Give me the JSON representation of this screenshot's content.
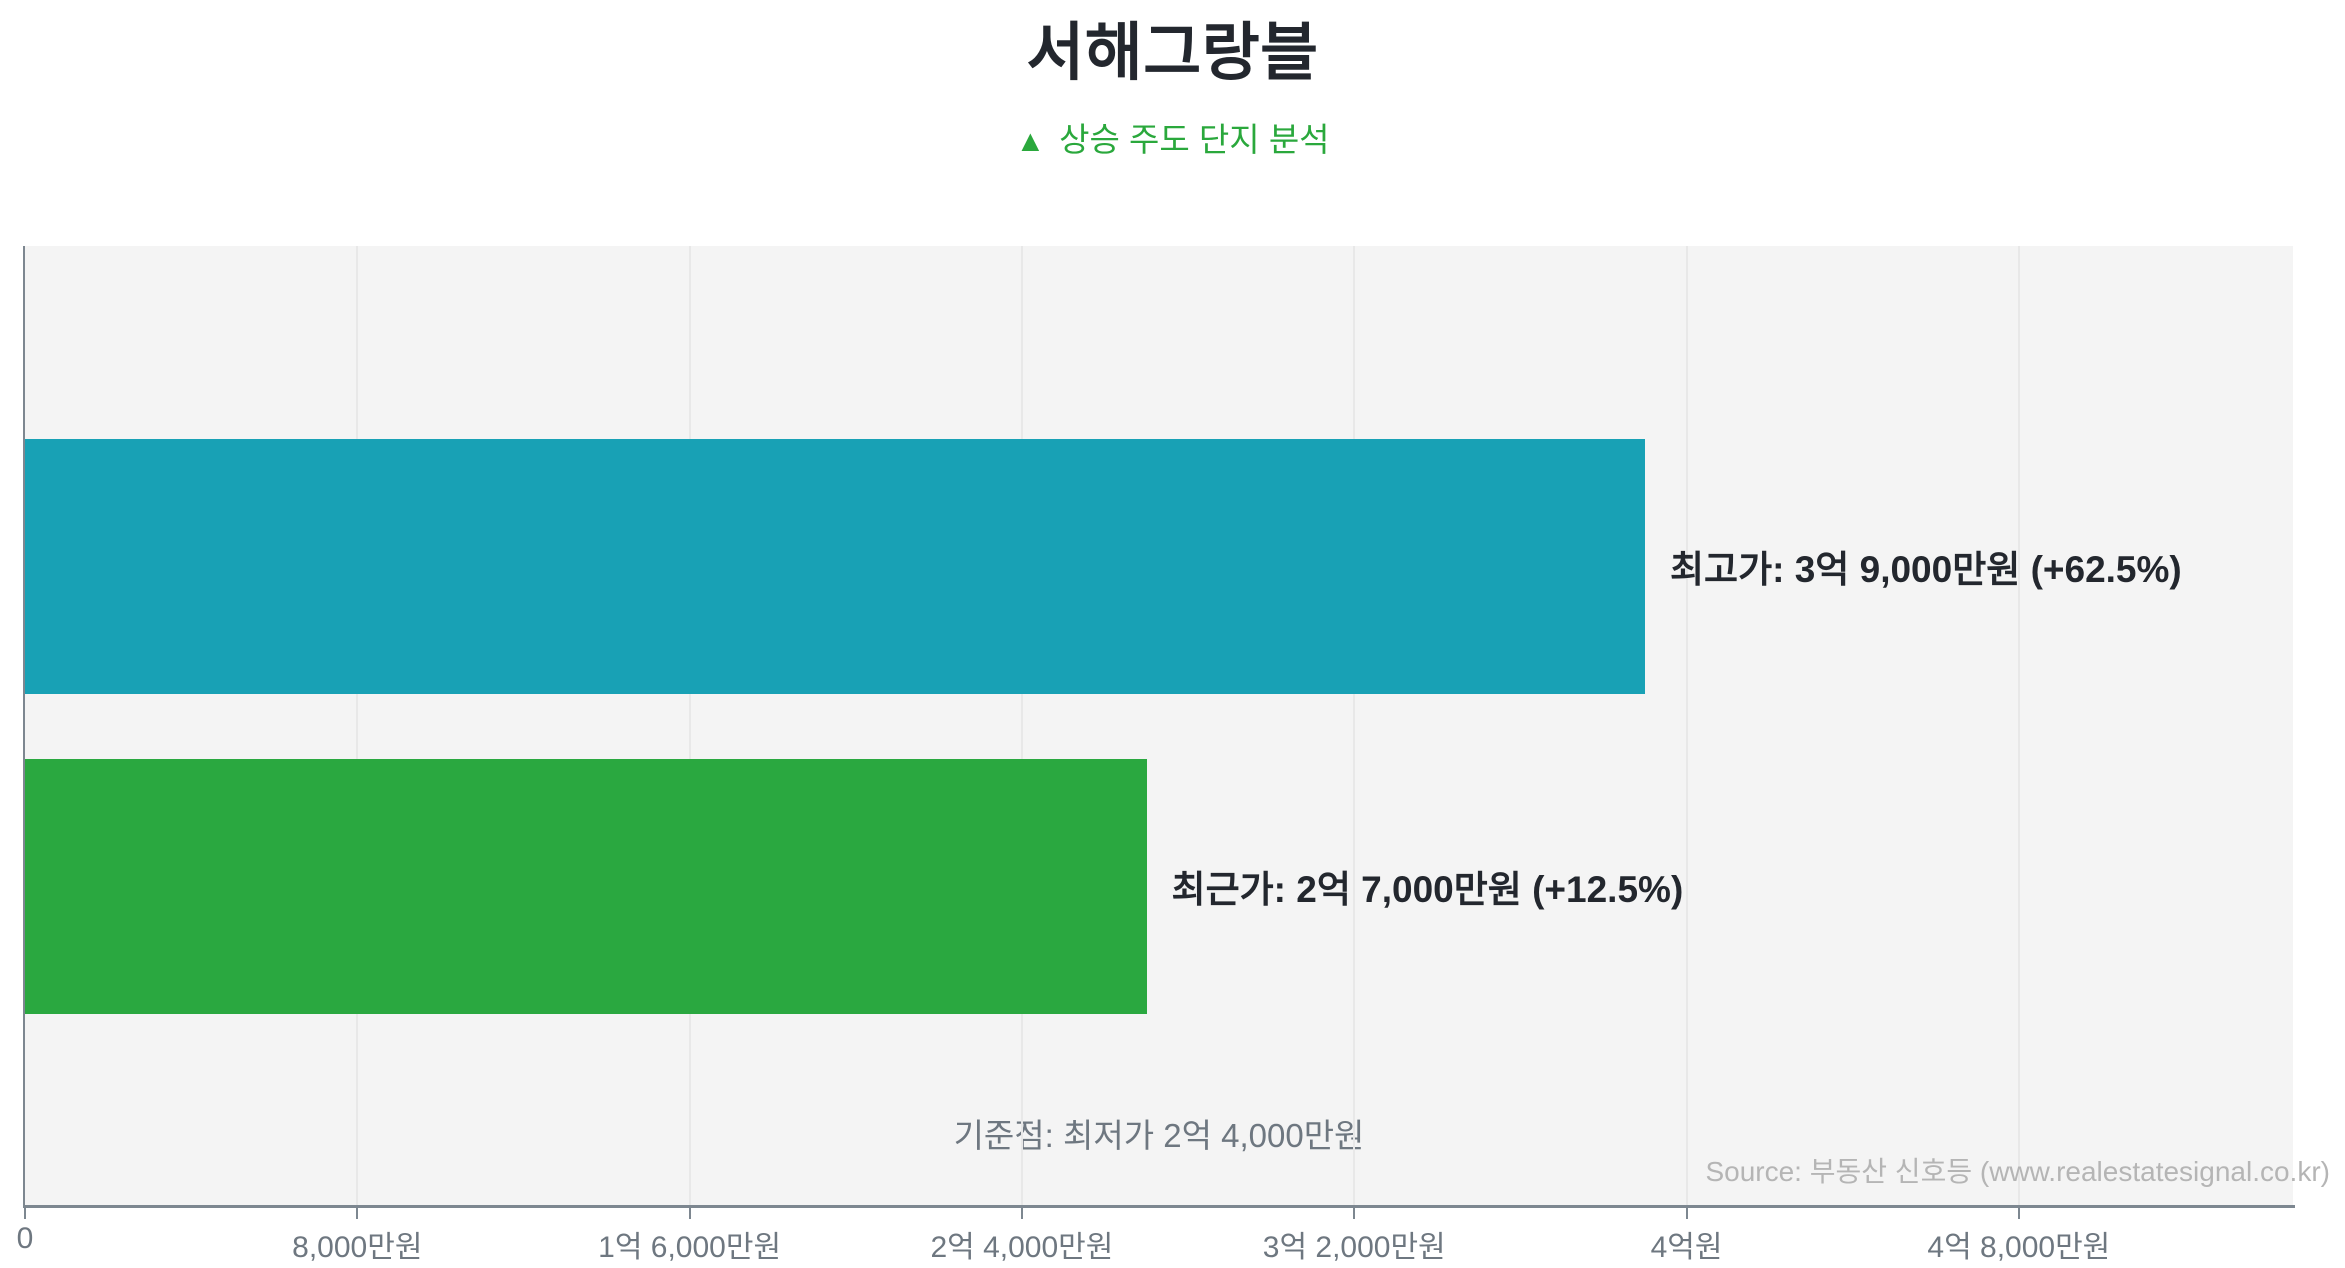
{
  "header": {
    "title": "서해그랑블",
    "subtitle_icon": "▲",
    "subtitle": "상승 주도 단지 분석"
  },
  "colors": {
    "ink": "#23272e",
    "accent_green": "#2aa83c",
    "bar_high": "#18a1b5",
    "bar_recent": "#2aa840",
    "plot_bg": "#f4f4f4",
    "grid": "#e8e8e8",
    "axis": "#7d8790",
    "muted_text": "#6e7780",
    "faint_text": "#b5b5b5"
  },
  "chart_data": {
    "type": "bar",
    "orientation": "horizontal",
    "unit": "만원",
    "xlim": [
      0,
      54600
    ],
    "grid": true,
    "x_ticks": [
      {
        "value": 0,
        "label": "0"
      },
      {
        "value": 8000,
        "label": "8,000만원"
      },
      {
        "value": 16000,
        "label": "1억 6,000만원"
      },
      {
        "value": 24000,
        "label": "2억 4,000만원"
      },
      {
        "value": 32000,
        "label": "3억 2,000만원"
      },
      {
        "value": 40000,
        "label": "4억원"
      },
      {
        "value": 48000,
        "label": "4억 8,000만원"
      }
    ],
    "bars": [
      {
        "name": "최고가",
        "value": 39000,
        "label": "최고가: 3억 9,000만원 (+62.5%)",
        "change_pct": "+62.5%",
        "color": "#18a1b5"
      },
      {
        "name": "최근가",
        "value": 27000,
        "label": "최근가: 2억 7,000만원 (+12.5%)",
        "change_pct": "+12.5%",
        "color": "#2aa840"
      }
    ],
    "baseline_note": "기준점: 최저가 2억 4,000만원",
    "baseline_value": 24000
  },
  "footer": {
    "source": "Source: 부동산 신호등 (www.realestatesignal.co.kr)"
  }
}
